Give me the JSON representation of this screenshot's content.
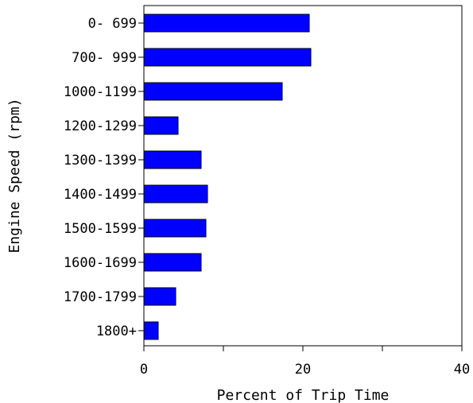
{
  "chart_data": {
    "type": "bar",
    "orientation": "horizontal",
    "categories": [
      "0- 699",
      "700- 999",
      "1000-1199",
      "1200-1299",
      "1300-1399",
      "1400-1499",
      "1500-1599",
      "1600-1699",
      "1700-1799",
      "1800+"
    ],
    "values": [
      20.8,
      21.0,
      17.4,
      4.3,
      7.2,
      8.0,
      7.8,
      7.2,
      4.0,
      1.8
    ],
    "xlabel": "Percent of Trip Time",
    "ylabel": "Engine Speed (rpm)",
    "xlim": [
      0,
      40
    ],
    "x_ticks": [
      0,
      10,
      20,
      30,
      40
    ],
    "x_tick_labels": [
      "0",
      "",
      "20",
      "",
      "40"
    ],
    "grid": false,
    "bar_color": "#0000ff",
    "bar_edge_color": "#000000"
  }
}
